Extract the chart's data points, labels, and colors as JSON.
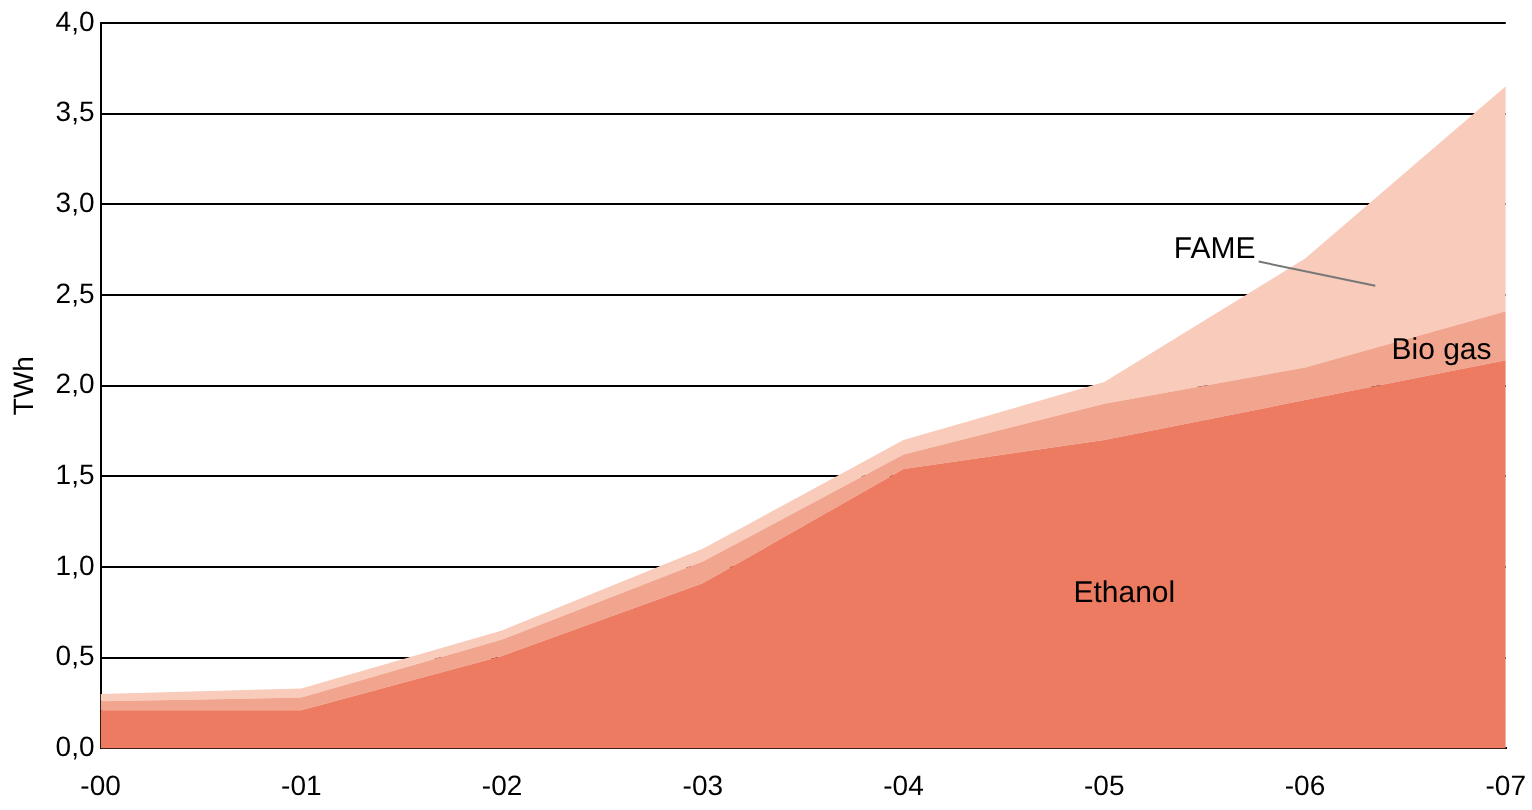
{
  "chart_data": {
    "type": "area",
    "stacked": true,
    "ylabel": "TWh",
    "categories": [
      "-00",
      "-01",
      "-02",
      "-03",
      "-04",
      "-05",
      "-06",
      "-07"
    ],
    "series": [
      {
        "name": "Ethanol",
        "color": "#ec7b62",
        "values": [
          0.21,
          0.21,
          0.51,
          0.91,
          1.54,
          1.7,
          1.92,
          2.14
        ]
      },
      {
        "name": "Bio gas",
        "color": "#f2a58e",
        "values": [
          0.05,
          0.07,
          0.09,
          0.12,
          0.08,
          0.2,
          0.18,
          0.27
        ]
      },
      {
        "name": "FAME",
        "color": "#f8cbbb",
        "values": [
          0.04,
          0.05,
          0.05,
          0.07,
          0.08,
          0.12,
          0.6,
          1.24
        ]
      }
    ],
    "ylim": [
      0,
      4
    ],
    "yticks": [
      {
        "value": 0,
        "label": "0,0"
      },
      {
        "value": 0.5,
        "label": "0,5"
      },
      {
        "value": 1,
        "label": "1,0"
      },
      {
        "value": 1.5,
        "label": "1,5"
      },
      {
        "value": 2,
        "label": "2,0"
      },
      {
        "value": 2.5,
        "label": "2,5"
      },
      {
        "value": 3,
        "label": "3,0"
      },
      {
        "value": 3.5,
        "label": "3,5"
      },
      {
        "value": 4,
        "label": "4,0"
      }
    ],
    "grid": "y",
    "legend": false
  }
}
